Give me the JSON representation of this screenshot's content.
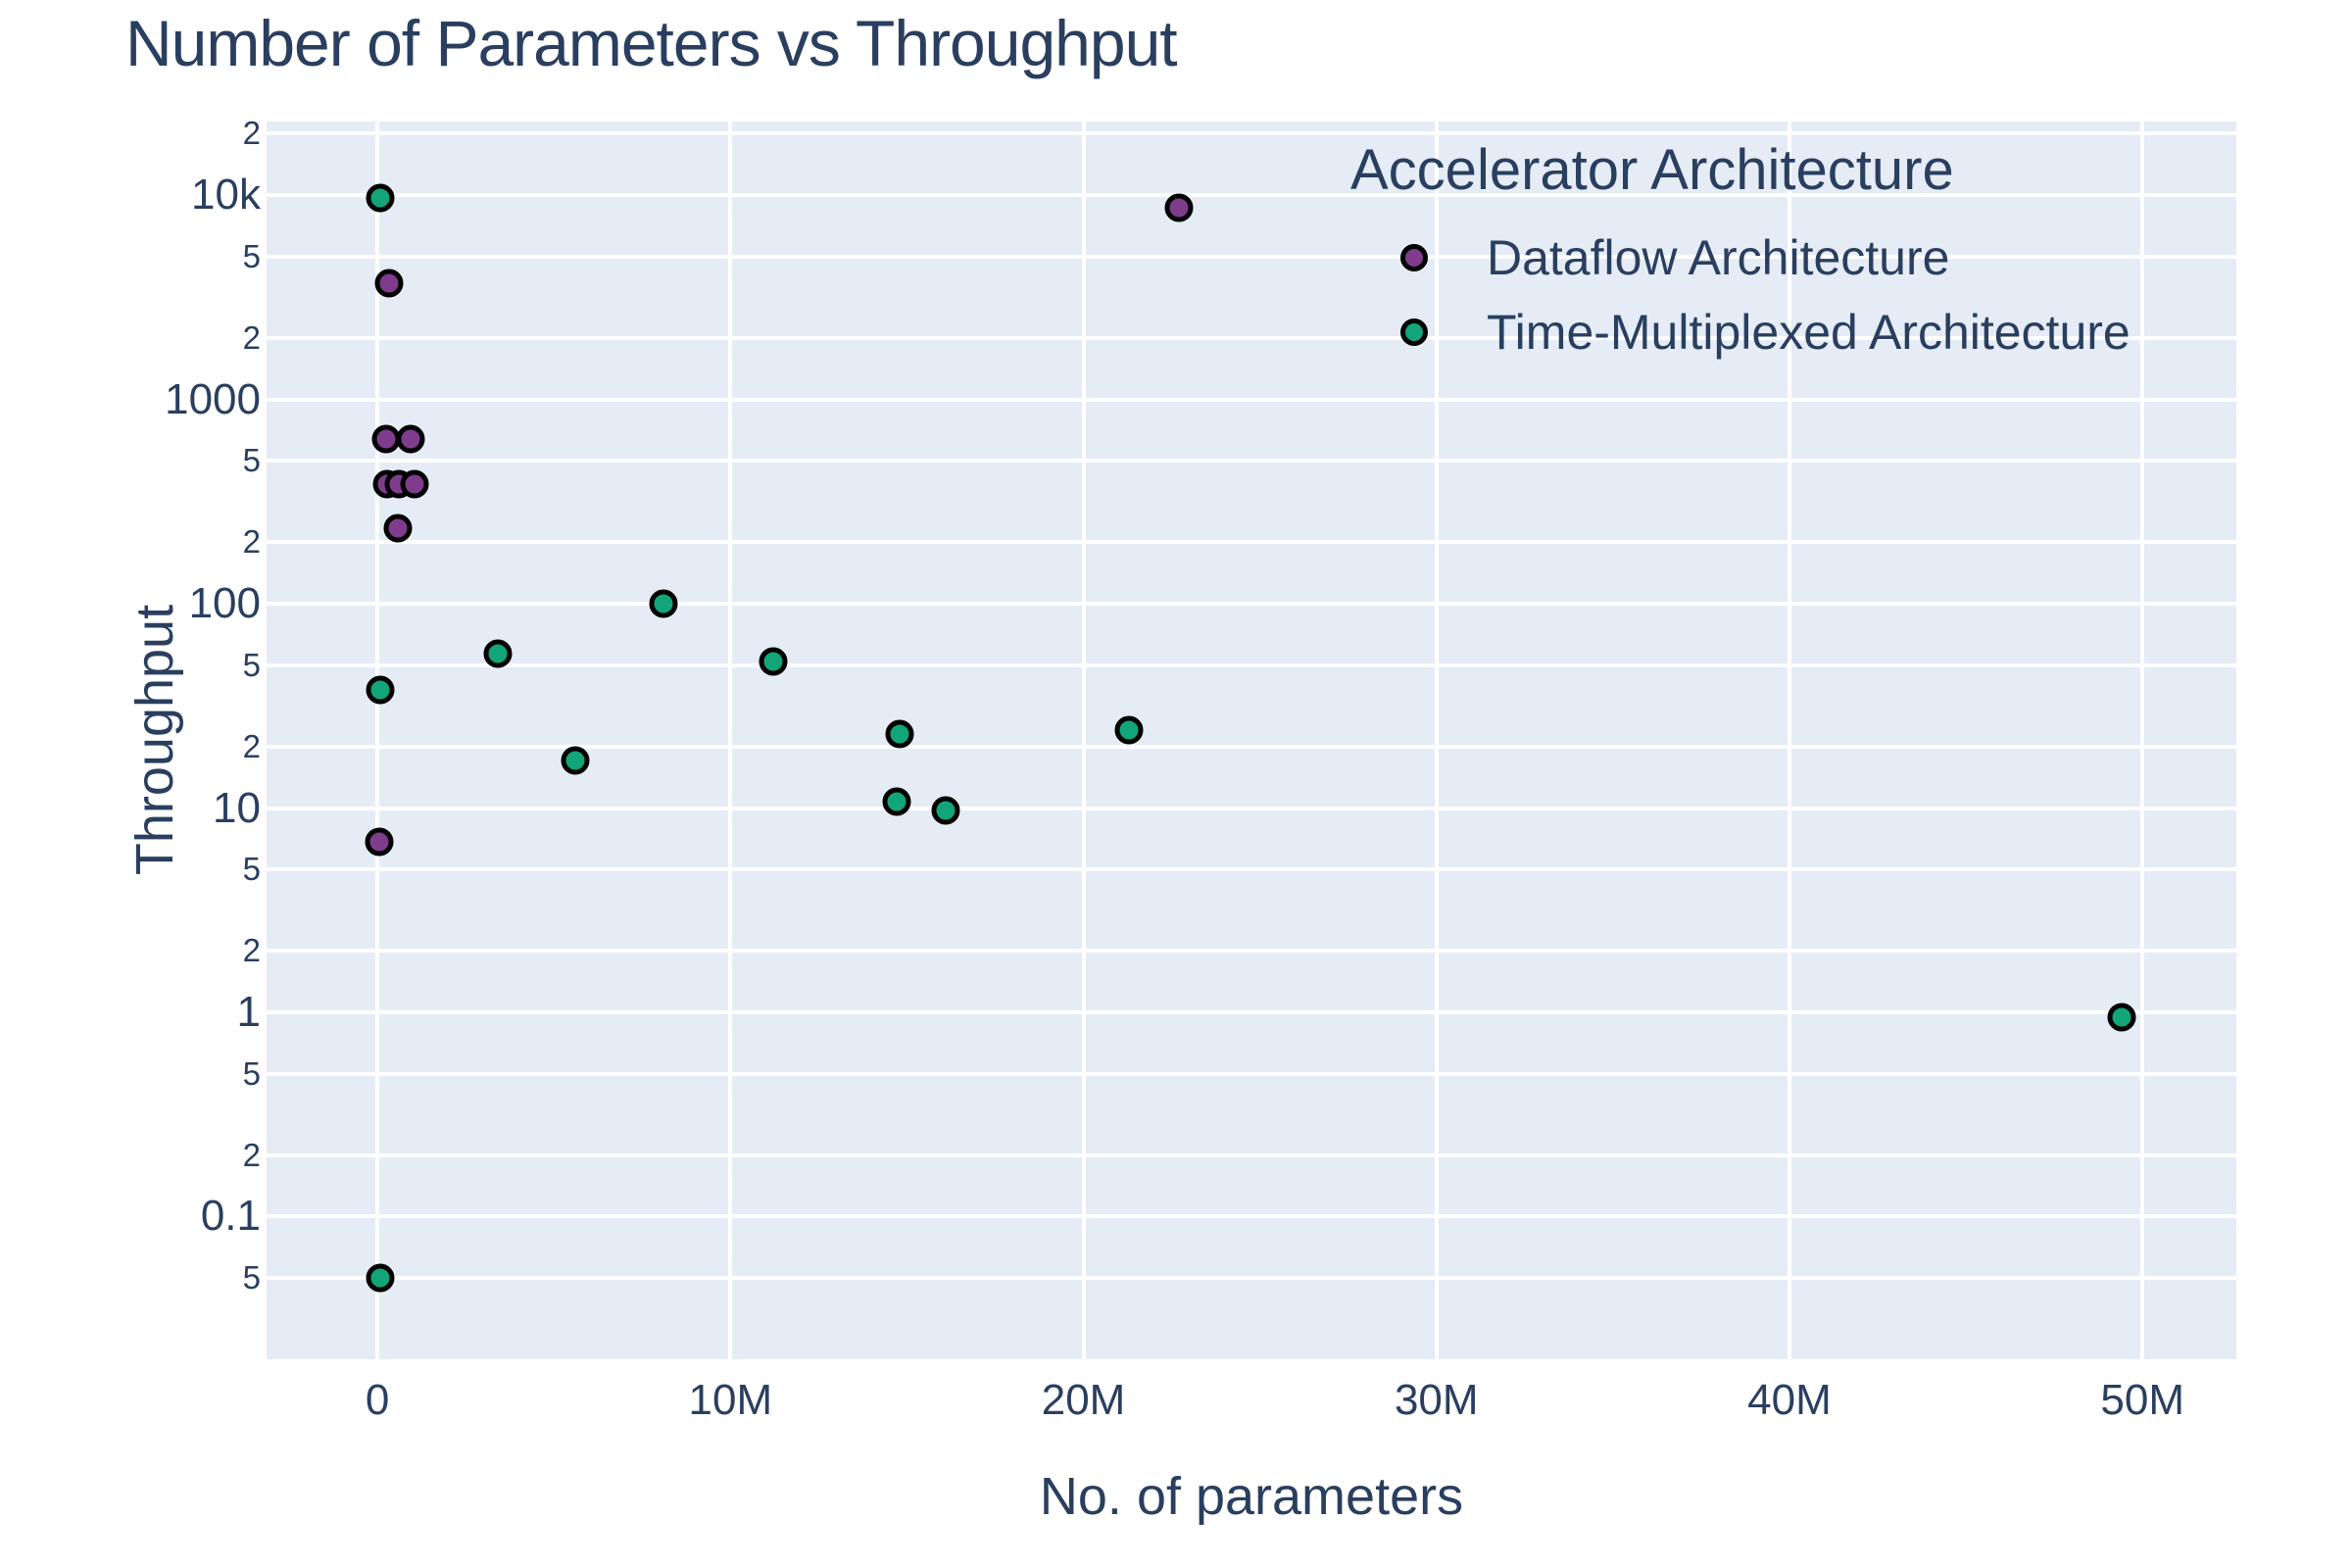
{
  "title": "Number of Parameters vs Throughput",
  "colors": {
    "background": "#ffffff",
    "plot_background": "#E5ECF6",
    "gridline": "#ffffff",
    "text": "#2a3f5f",
    "marker_outline": "#000000",
    "dataflow": "#7F3C8D",
    "time_multiplexed": "#11A579"
  },
  "legend": {
    "title": "Accelerator Architecture",
    "items": [
      {
        "label": "Dataflow Architecture",
        "color": "#7F3C8D"
      },
      {
        "label": "Time-Multiplexed Architecture",
        "color": "#11A579"
      }
    ]
  },
  "chart_data": {
    "type": "scatter",
    "title": "Number of Parameters vs Throughput",
    "xlabel": "No. of parameters",
    "ylabel": "Throughput",
    "x_axis": {
      "scale": "linear",
      "units": "parameters",
      "range_M": [
        -3.14,
        52.66
      ],
      "ticks": [
        {
          "label": "0",
          "value_M": 0
        },
        {
          "label": "10M",
          "value_M": 10
        },
        {
          "label": "20M",
          "value_M": 20
        },
        {
          "label": "30M",
          "value_M": 30
        },
        {
          "label": "40M",
          "value_M": 40
        },
        {
          "label": "50M",
          "value_M": 50
        }
      ]
    },
    "y_axis": {
      "scale": "log",
      "log10_range": [
        -1.698,
        4.36
      ],
      "ticks": [
        {
          "label": "2",
          "value": 20000,
          "major": false
        },
        {
          "label": "10k",
          "value": 10000,
          "major": true
        },
        {
          "label": "5",
          "value": 5000,
          "major": false
        },
        {
          "label": "2",
          "value": 2000,
          "major": false
        },
        {
          "label": "1000",
          "value": 1000,
          "major": true
        },
        {
          "label": "5",
          "value": 500,
          "major": false
        },
        {
          "label": "2",
          "value": 200,
          "major": false
        },
        {
          "label": "100",
          "value": 100,
          "major": true
        },
        {
          "label": "5",
          "value": 50,
          "major": false
        },
        {
          "label": "2",
          "value": 20,
          "major": false
        },
        {
          "label": "10",
          "value": 10,
          "major": true
        },
        {
          "label": "5",
          "value": 5,
          "major": false
        },
        {
          "label": "2",
          "value": 2,
          "major": false
        },
        {
          "label": "1",
          "value": 1,
          "major": true
        },
        {
          "label": "5",
          "value": 0.5,
          "major": false
        },
        {
          "label": "2",
          "value": 0.2,
          "major": false
        },
        {
          "label": "0.1",
          "value": 0.1,
          "major": true
        },
        {
          "label": "5",
          "value": 0.05,
          "major": false
        }
      ]
    },
    "grid": true,
    "legend_position": "inside-top-right",
    "series": [
      {
        "name": "Dataflow Architecture",
        "color": "#7F3C8D",
        "points": [
          {
            "params_M": 0.33,
            "throughput": 3700
          },
          {
            "params_M": 0.25,
            "throughput": 640
          },
          {
            "params_M": 0.94,
            "throughput": 640
          },
          {
            "params_M": 0.28,
            "throughput": 385
          },
          {
            "params_M": 0.61,
            "throughput": 385
          },
          {
            "params_M": 1.06,
            "throughput": 385
          },
          {
            "params_M": 0.58,
            "throughput": 233
          },
          {
            "params_M": 0.06,
            "throughput": 6.8
          },
          {
            "params_M": 22.7,
            "throughput": 8700
          }
        ]
      },
      {
        "name": "Time-Multiplexed Architecture",
        "color": "#11A579",
        "points": [
          {
            "params_M": 0.08,
            "throughput": 9700
          },
          {
            "params_M": 0.08,
            "throughput": 38
          },
          {
            "params_M": 0.08,
            "throughput": 0.05
          },
          {
            "params_M": 3.4,
            "throughput": 57
          },
          {
            "params_M": 5.6,
            "throughput": 17
          },
          {
            "params_M": 8.1,
            "throughput": 100
          },
          {
            "params_M": 11.2,
            "throughput": 52
          },
          {
            "params_M": 14.8,
            "throughput": 23
          },
          {
            "params_M": 14.7,
            "throughput": 10.7
          },
          {
            "params_M": 16.1,
            "throughput": 9.7
          },
          {
            "params_M": 21.3,
            "throughput": 24
          },
          {
            "params_M": 49.4,
            "throughput": 0.95
          }
        ]
      }
    ]
  }
}
